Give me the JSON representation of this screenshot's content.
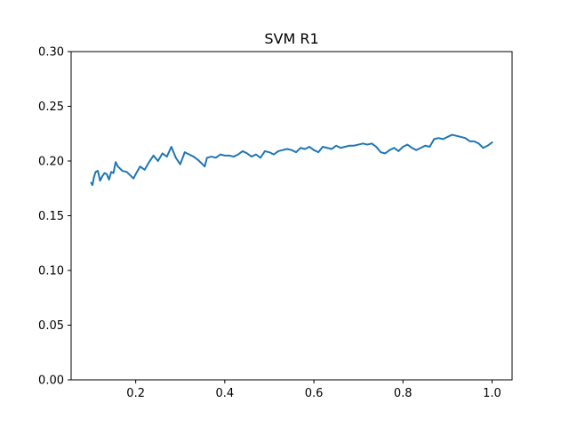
{
  "chart_data": {
    "type": "line",
    "title": "SVM R1",
    "xlabel": "",
    "ylabel": "",
    "xlim": [
      0.055,
      1.045
    ],
    "ylim": [
      0.0,
      0.3
    ],
    "grid": false,
    "x_ticks": [
      0.2,
      0.4,
      0.6,
      0.8,
      1.0
    ],
    "x_tick_labels": [
      "0.2",
      "0.4",
      "0.6",
      "0.8",
      "1.0"
    ],
    "y_ticks": [
      0.0,
      0.05,
      0.1,
      0.15,
      0.2,
      0.25,
      0.3
    ],
    "y_tick_labels": [
      "0.00",
      "0.05",
      "0.10",
      "0.15",
      "0.20",
      "0.25",
      "0.30"
    ],
    "line_color": "#1f77b4",
    "series": [
      {
        "x": [
          0.1,
          0.103,
          0.106,
          0.11,
          0.115,
          0.12,
          0.125,
          0.13,
          0.135,
          0.14,
          0.145,
          0.15,
          0.155,
          0.16,
          0.165,
          0.17,
          0.18,
          0.19,
          0.195,
          0.2,
          0.21,
          0.22,
          0.23,
          0.24,
          0.25,
          0.26,
          0.27,
          0.28,
          0.285,
          0.29,
          0.3,
          0.31,
          0.32,
          0.33,
          0.34,
          0.35,
          0.355,
          0.36,
          0.37,
          0.38,
          0.39,
          0.4,
          0.41,
          0.42,
          0.43,
          0.44,
          0.45,
          0.46,
          0.47,
          0.48,
          0.49,
          0.5,
          0.51,
          0.52,
          0.53,
          0.54,
          0.55,
          0.56,
          0.57,
          0.58,
          0.59,
          0.6,
          0.61,
          0.62,
          0.63,
          0.64,
          0.65,
          0.66,
          0.67,
          0.68,
          0.69,
          0.7,
          0.71,
          0.72,
          0.73,
          0.74,
          0.75,
          0.76,
          0.77,
          0.78,
          0.79,
          0.8,
          0.81,
          0.82,
          0.83,
          0.84,
          0.85,
          0.86,
          0.87,
          0.88,
          0.89,
          0.9,
          0.91,
          0.92,
          0.93,
          0.94,
          0.95,
          0.96,
          0.97,
          0.98,
          0.99,
          1.0
        ],
        "y": [
          0.18,
          0.178,
          0.185,
          0.19,
          0.191,
          0.182,
          0.186,
          0.189,
          0.188,
          0.183,
          0.19,
          0.189,
          0.199,
          0.195,
          0.193,
          0.191,
          0.19,
          0.186,
          0.184,
          0.188,
          0.195,
          0.192,
          0.199,
          0.205,
          0.2,
          0.207,
          0.204,
          0.213,
          0.208,
          0.203,
          0.197,
          0.208,
          0.206,
          0.204,
          0.201,
          0.197,
          0.195,
          0.203,
          0.204,
          0.203,
          0.206,
          0.205,
          0.205,
          0.204,
          0.206,
          0.209,
          0.207,
          0.204,
          0.206,
          0.203,
          0.209,
          0.208,
          0.206,
          0.209,
          0.21,
          0.211,
          0.21,
          0.208,
          0.212,
          0.211,
          0.213,
          0.21,
          0.208,
          0.213,
          0.212,
          0.211,
          0.214,
          0.212,
          0.213,
          0.214,
          0.214,
          0.215,
          0.216,
          0.215,
          0.216,
          0.213,
          0.208,
          0.207,
          0.21,
          0.212,
          0.209,
          0.213,
          0.215,
          0.212,
          0.21,
          0.212,
          0.214,
          0.213,
          0.22,
          0.221,
          0.22,
          0.222,
          0.224,
          0.223,
          0.222,
          0.221,
          0.218,
          0.218,
          0.216,
          0.212,
          0.214,
          0.217
        ]
      }
    ]
  }
}
